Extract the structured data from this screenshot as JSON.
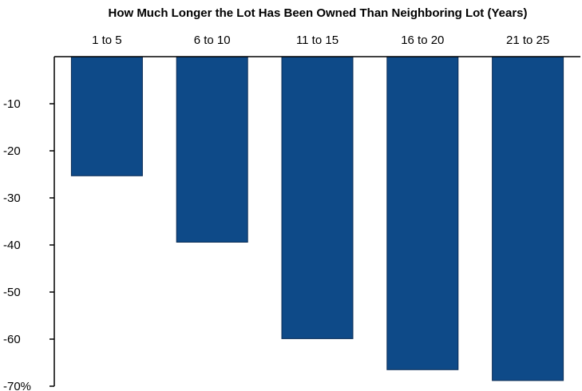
{
  "chart_data": {
    "type": "bar",
    "title": "How Much Longer the Lot Has Been Owned Than Neighboring Lot (Years)",
    "xlabel": "",
    "ylabel": "",
    "categories": [
      "1 to 5",
      "6 to 10",
      "11 to 15",
      "16 to 20",
      "21 to 25"
    ],
    "values": [
      -25.3,
      -39.4,
      -59.9,
      -66.5,
      -68.8
    ],
    "ylim": [
      -70,
      0
    ],
    "y_ticks": [
      -10,
      -20,
      -30,
      -40,
      -50,
      -60,
      -70
    ],
    "y_tick_labels": [
      "-10",
      "-20",
      "-30",
      "-40",
      "-50",
      "-60",
      "-70%"
    ],
    "x_axis_position": "top",
    "grid": false,
    "bar_color": "#0e4a88",
    "bar_edge_color": "#0a2c55"
  }
}
